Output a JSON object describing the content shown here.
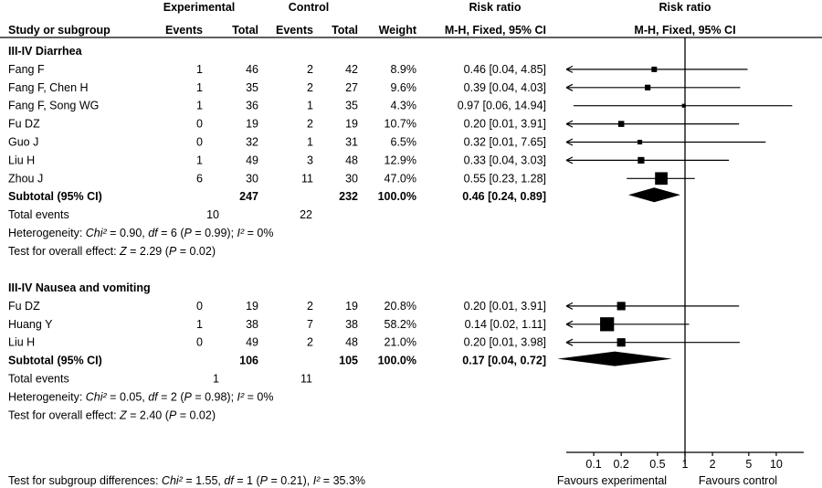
{
  "header": {
    "col_study": "Study or subgroup",
    "group_experimental": "Experimental",
    "group_control": "Control",
    "col_events": "Events",
    "col_total": "Total",
    "col_weight": "Weight",
    "col_rr_title": "Risk ratio",
    "col_rr_method": "M-H, Fixed, 95% CI",
    "plot_title": "Risk ratio",
    "plot_method": "M-H, Fixed, 95% CI"
  },
  "footer": {
    "favours_left": "Favours experimental",
    "favours_right": "Favours control",
    "subgroup_test_prefix": "Test for subgroup differences: ",
    "subgroup_test_chi": "Chi²",
    "subgroup_test_mid1": " = 1.55, ",
    "subgroup_test_df": "df",
    "subgroup_test_mid2": " = 1 (",
    "subgroup_test_p": "P",
    "subgroup_test_mid3": " = 0.21), ",
    "subgroup_test_i": "I²",
    "subgroup_test_end": " = 35.3%"
  },
  "chart_data": {
    "type": "forest",
    "scale": "log",
    "xlim": [
      0.05,
      20
    ],
    "ticks": [
      {
        "value": 0.1,
        "label": "0.1"
      },
      {
        "value": 0.2,
        "label": "0.2"
      },
      {
        "value": 0.5,
        "label": "0.5"
      },
      {
        "value": 1,
        "label": "1"
      },
      {
        "value": 2,
        "label": "2"
      },
      {
        "value": 5,
        "label": "5"
      },
      {
        "value": 10,
        "label": "10"
      }
    ],
    "groups": [
      {
        "title": "III-IV Diarrhea",
        "studies": [
          {
            "name": "Fang F",
            "exp_events": "1",
            "exp_total": "46",
            "ctl_events": "2",
            "ctl_total": "42",
            "weight": "8.9%",
            "ci_text": "0.46 [0.04, 4.85]",
            "rr": 0.46,
            "lo": 0.04,
            "hi": 4.85,
            "w": 8.9
          },
          {
            "name": "Fang F, Chen  H",
            "exp_events": "1",
            "exp_total": "35",
            "ctl_events": "2",
            "ctl_total": "27",
            "weight": "9.6%",
            "ci_text": "0.39 [0.04, 4.03]",
            "rr": 0.39,
            "lo": 0.04,
            "hi": 4.03,
            "w": 9.6
          },
          {
            "name": "Fang F, Song WG",
            "exp_events": "1",
            "exp_total": "36",
            "ctl_events": "1",
            "ctl_total": "35",
            "weight": "4.3%",
            "ci_text": "0.97 [0.06, 14.94]",
            "rr": 0.97,
            "lo": 0.06,
            "hi": 14.94,
            "w": 4.3
          },
          {
            "name": "Fu DZ",
            "exp_events": "0",
            "exp_total": "19",
            "ctl_events": "2",
            "ctl_total": "19",
            "weight": "10.7%",
            "ci_text": "0.20 [0.01, 3.91]",
            "rr": 0.2,
            "lo": 0.01,
            "hi": 3.91,
            "w": 10.7
          },
          {
            "name": "Guo J",
            "exp_events": "0",
            "exp_total": "32",
            "ctl_events": "1",
            "ctl_total": "31",
            "weight": "6.5%",
            "ci_text": "0.32 [0.01, 7.65]",
            "rr": 0.32,
            "lo": 0.01,
            "hi": 7.65,
            "w": 6.5
          },
          {
            "name": "Liu  H",
            "exp_events": "1",
            "exp_total": "49",
            "ctl_events": "3",
            "ctl_total": "48",
            "weight": "12.9%",
            "ci_text": "0.33 [0.04, 3.03]",
            "rr": 0.33,
            "lo": 0.04,
            "hi": 3.03,
            "w": 12.9
          },
          {
            "name": "Zhou J",
            "exp_events": "6",
            "exp_total": "30",
            "ctl_events": "11",
            "ctl_total": "30",
            "weight": "47.0%",
            "ci_text": "0.55 [0.23, 1.28]",
            "rr": 0.55,
            "lo": 0.23,
            "hi": 1.28,
            "w": 47.0
          }
        ],
        "subtotal": {
          "label": "Subtotal (95% CI)",
          "exp_total": "247",
          "ctl_total": "232",
          "weight": "100.0%",
          "ci_text": "0.46 [0.24, 0.89]",
          "rr": 0.46,
          "lo": 0.24,
          "hi": 0.89
        },
        "total_events": {
          "label": "Total events",
          "exp": "10",
          "ctl": "22"
        },
        "heterogeneity": {
          "prefix": "Heterogeneity: ",
          "chi": "Chi²",
          "mid1": " = 0.90, ",
          "df": "df",
          "mid2": " = 6 (",
          "p": "P",
          "mid3": " = 0.99); ",
          "i": "I²",
          "end": " = 0%"
        },
        "overall": {
          "prefix": "Test for overall effect: ",
          "z": "Z",
          "mid": " = 2.29 (",
          "p": "P",
          "end": " = 0.02)"
        }
      },
      {
        "title": "III-IV Nausea and vomiting",
        "studies": [
          {
            "name": "Fu DZ",
            "exp_events": "0",
            "exp_total": "19",
            "ctl_events": "2",
            "ctl_total": "19",
            "weight": "20.8%",
            "ci_text": "0.20 [0.01, 3.91]",
            "rr": 0.2,
            "lo": 0.01,
            "hi": 3.91,
            "w": 20.8
          },
          {
            "name": "Huang Y",
            "exp_events": "1",
            "exp_total": "38",
            "ctl_events": "7",
            "ctl_total": "38",
            "weight": "58.2%",
            "ci_text": "0.14 [0.02, 1.11]",
            "rr": 0.14,
            "lo": 0.02,
            "hi": 1.11,
            "w": 58.2
          },
          {
            "name": "Liu  H",
            "exp_events": "0",
            "exp_total": "49",
            "ctl_events": "2",
            "ctl_total": "48",
            "weight": "21.0%",
            "ci_text": "0.20 [0.01, 3.98]",
            "rr": 0.2,
            "lo": 0.01,
            "hi": 3.98,
            "w": 21.0
          }
        ],
        "subtotal": {
          "label": "Subtotal (95% CI)",
          "exp_total": "106",
          "ctl_total": "105",
          "weight": "100.0%",
          "ci_text": "0.17 [0.04, 0.72]",
          "rr": 0.17,
          "lo": 0.04,
          "hi": 0.72
        },
        "total_events": {
          "label": "Total events",
          "exp": "1",
          "ctl": "11"
        },
        "heterogeneity": {
          "prefix": "Heterogeneity: ",
          "chi": "Chi²",
          "mid1": " = 0.05, ",
          "df": "df",
          "mid2": " = 2 (",
          "p": "P",
          "mid3": " = 0.98); ",
          "i": "I²",
          "end": " = 0%"
        },
        "overall": {
          "prefix": "Test for overall effect: ",
          "z": "Z",
          "mid": " = 2.40 (",
          "p": "P",
          "end": " = 0.02)"
        }
      }
    ]
  }
}
